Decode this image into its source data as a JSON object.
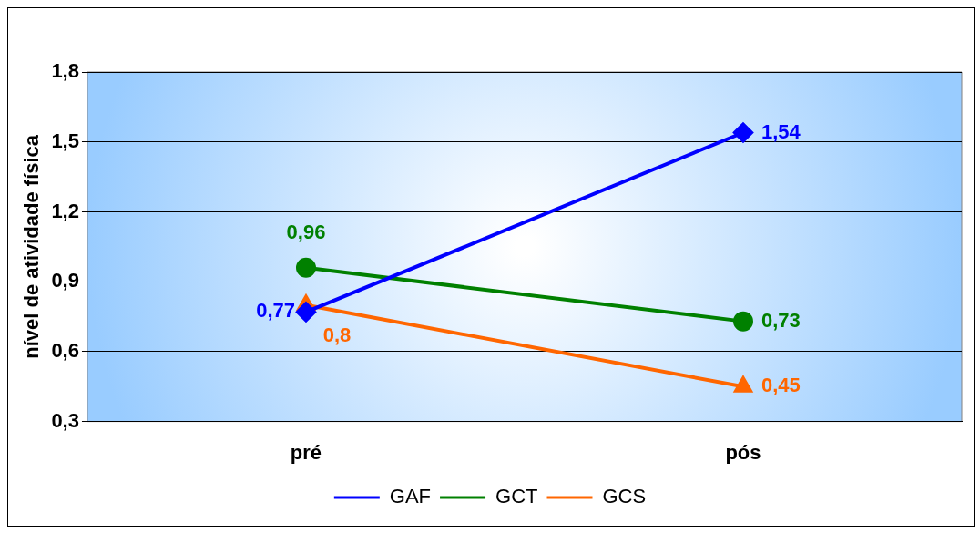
{
  "chart_data": {
    "type": "line",
    "categories": [
      "pré",
      "pós"
    ],
    "ylabel": "nível de atividade física",
    "ylim": [
      0.3,
      1.8
    ],
    "yticks": [
      {
        "value": 0.3,
        "label": "0,3"
      },
      {
        "value": 0.6,
        "label": "0,6"
      },
      {
        "value": 0.9,
        "label": "0,9"
      },
      {
        "value": 1.2,
        "label": "1,2"
      },
      {
        "value": 1.5,
        "label": "1,5"
      },
      {
        "value": 1.8,
        "label": "1,8"
      }
    ],
    "grid": "y",
    "legend": "bottom",
    "data_labels": true,
    "series": [
      {
        "name": "GAF",
        "color": "#0000ff",
        "values": [
          0.77,
          1.54
        ],
        "value_labels": [
          "0,77",
          "1,54"
        ],
        "marker": "diamond"
      },
      {
        "name": "GCT",
        "color": "#008000",
        "values": [
          0.96,
          0.73
        ],
        "value_labels": [
          "0,96",
          "0,73"
        ],
        "marker": "circle"
      },
      {
        "name": "GCS",
        "color": "#ff6600",
        "values": [
          0.8,
          0.45
        ],
        "value_labels": [
          "0,8",
          "0,45"
        ],
        "marker": "triangle"
      }
    ]
  }
}
